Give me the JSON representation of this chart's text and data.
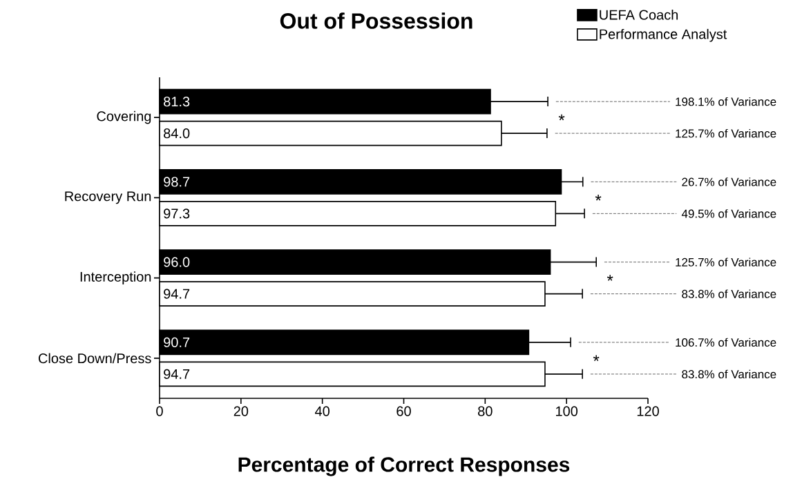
{
  "chart_data": {
    "type": "bar",
    "orientation": "horizontal",
    "title": "Out of Possession",
    "xlabel": "Percentage of Correct Responses",
    "categories": [
      "Covering",
      "Recovery Run",
      "Interception",
      "Close Down/Press"
    ],
    "series": [
      {
        "name": "UEFA Coach",
        "color": "#000000",
        "values": [
          81.3,
          98.7,
          96.0,
          90.7
        ],
        "value_labels": [
          "81.3",
          "98.7",
          "96.0",
          "90.7"
        ],
        "errors": [
          [
            81.3,
            95.4
          ],
          [
            98.7,
            104.0
          ],
          [
            96.0,
            107.3
          ],
          [
            90.7,
            101.0
          ]
        ]
      },
      {
        "name": "Performance Analyst",
        "color": "#ffffff",
        "values": [
          84.0,
          97.3,
          94.7,
          94.7
        ],
        "value_labels": [
          "84.0",
          "97.3",
          "94.7",
          "94.7"
        ],
        "errors": [
          [
            84.0,
            95.2
          ],
          [
            97.3,
            104.4
          ],
          [
            94.7,
            103.9
          ],
          [
            94.7,
            103.9
          ]
        ]
      }
    ],
    "xlim": [
      0,
      120
    ],
    "xticks": [
      0,
      20,
      40,
      60,
      80,
      100,
      120
    ],
    "legend": "top right",
    "grid": false,
    "annotations": [
      "198.1% of Variance",
      "125.7% of Variance",
      "26.7% of Variance",
      "49.5% of Variance",
      "125.7% of Variance",
      "83.8% of Variance",
      "106.7% of Variance",
      "83.8% of Variance",
      "*",
      "*",
      "*",
      "*"
    ]
  }
}
